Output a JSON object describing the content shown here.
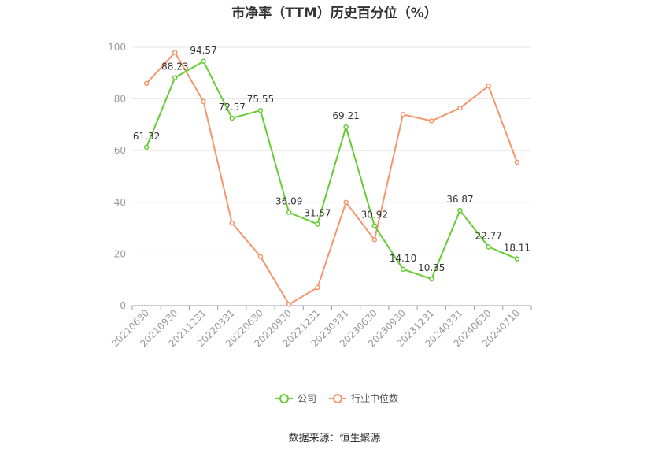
{
  "title": "市净率（TTM）历史百分位（%）",
  "source": "数据来源：恒生聚源",
  "colors": {
    "company": "#66cc33",
    "industry": "#f5956a",
    "axis": "#999999",
    "grid": "#e6e6e6"
  },
  "chart_data": {
    "type": "line",
    "title": "市净率（TTM）历史百分位（%）",
    "categories": [
      "20210630",
      "20210930",
      "20211231",
      "20220331",
      "20220630",
      "20220930",
      "20221231",
      "20230331",
      "20230630",
      "20230930",
      "20231231",
      "20240331",
      "20240630",
      "20240710"
    ],
    "series": [
      {
        "name": "公司",
        "values": [
          61.32,
          88.23,
          94.57,
          72.57,
          75.55,
          36.09,
          31.57,
          69.21,
          30.92,
          14.1,
          10.35,
          36.87,
          22.77,
          18.11
        ],
        "labels": [
          "61.32",
          "88.23",
          "94.57",
          "72.57",
          "75.55",
          "36.09",
          "31.57",
          "69.21",
          "30.92",
          "14.10",
          "10.35",
          "36.87",
          "22.77",
          "18.11"
        ]
      },
      {
        "name": "行业中位数",
        "values": [
          86,
          98,
          79,
          32,
          19,
          0.5,
          7,
          40,
          25.5,
          74,
          71.5,
          76.5,
          85,
          55.5
        ]
      }
    ],
    "yticks": [
      "0",
      "20",
      "40",
      "60",
      "80",
      "100"
    ],
    "ylim": [
      0,
      100
    ],
    "grid": true,
    "legend": "bottom-center"
  }
}
